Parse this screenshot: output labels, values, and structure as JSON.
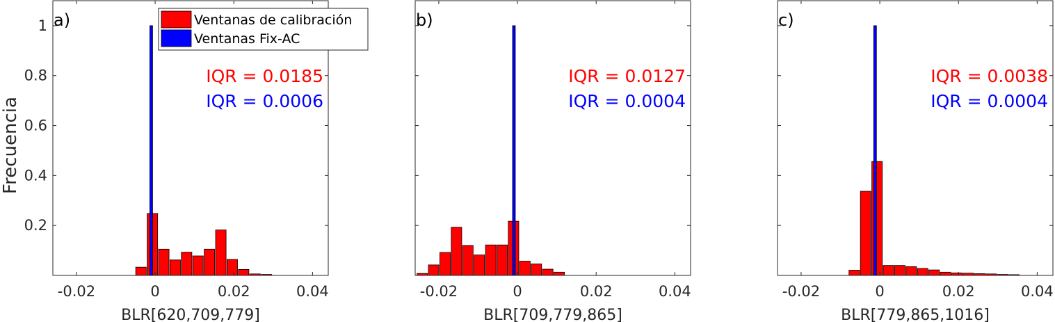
{
  "figure": {
    "ylabel": "Frecuencia",
    "legend": [
      {
        "label": "Ventanas de calibración",
        "color": "#ff0000"
      },
      {
        "label": "Ventanas Fix-AC",
        "color": "#0000ff"
      }
    ]
  },
  "chart_data": [
    {
      "type": "bar",
      "panel_label": "a)",
      "xlabel": "BLR[620,709,779]",
      "ylabel": "Frecuencia",
      "xlim": [
        -0.026,
        0.044
      ],
      "ylim": [
        0,
        1.1
      ],
      "xticks": [
        "-0.02",
        "0",
        "0.02",
        "0.04"
      ],
      "xtick_values": [
        -0.02,
        0,
        0.02,
        0.04
      ],
      "yticks": [
        "0.2",
        "0.4",
        "0.6",
        "0.8",
        "1"
      ],
      "ytick_values": [
        0.2,
        0.4,
        0.6,
        0.8,
        1.0
      ],
      "iqr": [
        {
          "series": "Ventanas de calibración",
          "text": "IQR = 0.0185",
          "color": "#ff0000"
        },
        {
          "series": "Ventanas Fix-AC",
          "text": "IQR = 0.0006",
          "color": "#0000ff"
        }
      ],
      "series": [
        {
          "name": "Ventanas de calibración",
          "color": "#ff0000",
          "bin_width": 0.0029,
          "x": [
            -0.0036,
            -0.0007,
            0.0022,
            0.0051,
            0.008,
            0.0109,
            0.0138,
            0.0167,
            0.0196,
            0.0225,
            0.0254,
            0.0283,
            0.0312
          ],
          "values": [
            0.033,
            0.248,
            0.105,
            0.062,
            0.093,
            0.078,
            0.105,
            0.182,
            0.064,
            0.024,
            0.006,
            0.004,
            0.0
          ]
        },
        {
          "name": "Ventanas Fix-AC",
          "color": "#0000ff",
          "bin_width": 0.0007,
          "x": [
            -0.001
          ],
          "values": [
            1.0
          ]
        }
      ]
    },
    {
      "type": "bar",
      "panel_label": "b)",
      "xlabel": "BLR[709,779,865]",
      "xlim": [
        -0.026,
        0.044
      ],
      "ylim": [
        0,
        1.1
      ],
      "xticks": [
        "-0.02",
        "0",
        "0.02",
        "0.04"
      ],
      "xtick_values": [
        -0.02,
        0,
        0.02,
        0.04
      ],
      "yticks": [],
      "ytick_values": [
        0.2,
        0.4,
        0.6,
        0.8,
        1.0
      ],
      "iqr": [
        {
          "series": "Ventanas de calibración",
          "text": "IQR = 0.0127",
          "color": "#ff0000"
        },
        {
          "series": "Ventanas Fix-AC",
          "text": "IQR = 0.0004",
          "color": "#0000ff"
        }
      ],
      "series": [
        {
          "name": "Ventanas de calibración",
          "color": "#ff0000",
          "bin_width": 0.0029,
          "x": [
            -0.0242,
            -0.0213,
            -0.0184,
            -0.0155,
            -0.0126,
            -0.0097,
            -0.0068,
            -0.0039,
            -0.001,
            0.0019,
            0.0048,
            0.0077,
            0.0106
          ],
          "values": [
            0.008,
            0.042,
            0.092,
            0.193,
            0.12,
            0.082,
            0.122,
            0.122,
            0.217,
            0.057,
            0.046,
            0.025,
            0.013
          ]
        },
        {
          "name": "Ventanas Fix-AC",
          "color": "#0000ff",
          "bin_width": 0.0007,
          "x": [
            -0.0009
          ],
          "values": [
            1.0
          ]
        }
      ]
    },
    {
      "type": "bar",
      "panel_label": "c)",
      "xlabel": "BLR[779,865,1016]",
      "xlim": [
        -0.026,
        0.044
      ],
      "ylim": [
        0,
        1.1
      ],
      "xticks": [
        "-0.02",
        "0",
        "0.02",
        "0.04"
      ],
      "xtick_values": [
        -0.02,
        0,
        0.02,
        0.04
      ],
      "yticks": [],
      "ytick_values": [
        0.2,
        0.4,
        0.6,
        0.8,
        1.0
      ],
      "iqr": [
        {
          "series": "Ventanas de calibración",
          "text": "IQR = 0.0038",
          "color": "#ff0000"
        },
        {
          "series": "Ventanas Fix-AC",
          "text": "IQR = 0.0004",
          "color": "#0000ff"
        }
      ],
      "series": [
        {
          "name": "Ventanas de calibración",
          "color": "#ff0000",
          "bin_width": 0.0029,
          "x": [
            -0.0065,
            -0.0036,
            -0.0007,
            0.0022,
            0.0051,
            0.008,
            0.0109,
            0.0138,
            0.0167,
            0.0196,
            0.0225,
            0.0254,
            0.0283,
            0.0312,
            0.0341
          ],
          "values": [
            0.021,
            0.337,
            0.456,
            0.04,
            0.04,
            0.035,
            0.028,
            0.022,
            0.013,
            0.01,
            0.009,
            0.007,
            0.006,
            0.004,
            0.003
          ]
        },
        {
          "name": "Ventanas Fix-AC",
          "color": "#0000ff",
          "bin_width": 0.0007,
          "x": [
            -0.0012
          ],
          "values": [
            1.0
          ]
        }
      ]
    }
  ]
}
